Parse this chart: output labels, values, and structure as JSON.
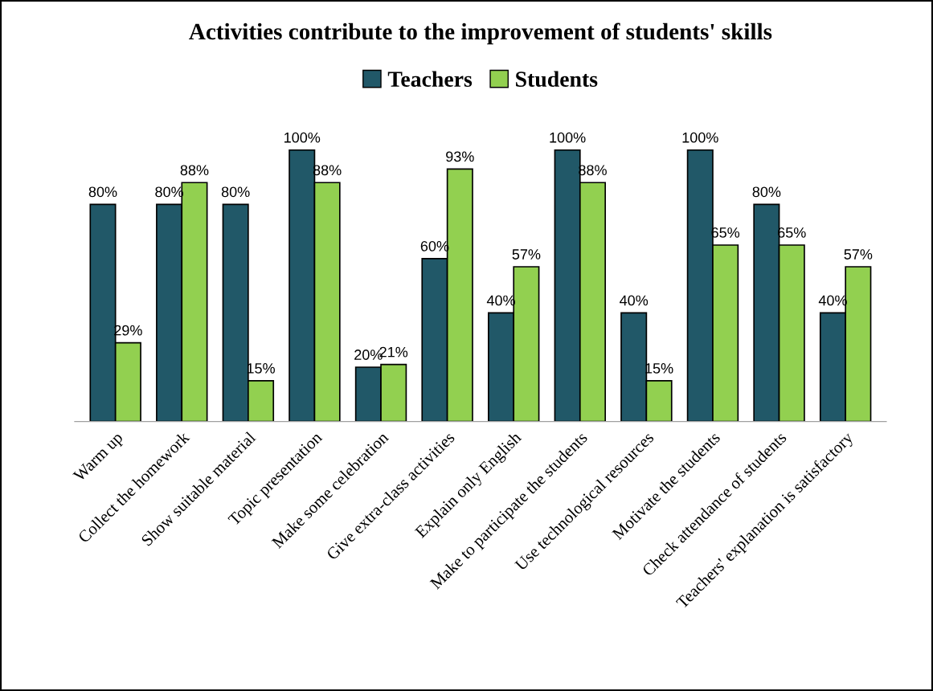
{
  "chart_data": {
    "type": "bar",
    "title": "Activities contribute to the improvement of students' skills",
    "categories": [
      "Warm up",
      "Collect the homework",
      "Show suitable material",
      "Topic presentation",
      "Make some celebration",
      "Give extra-class activities",
      "Explain only English",
      "Make to participate the students",
      "Use technological resources",
      "Motivate the students",
      "Check attendance of students",
      "Teachers' explanation is satisfactory"
    ],
    "series": [
      {
        "name": "Teachers",
        "color": "#215868",
        "values": [
          80,
          80,
          80,
          100,
          20,
          60,
          40,
          100,
          40,
          100,
          80,
          40
        ],
        "value_labels": [
          "80%",
          "80%",
          "80%",
          "100%",
          "20%",
          "60%",
          "40%",
          "100%",
          "40%",
          "100%",
          "80%",
          "40%"
        ]
      },
      {
        "name": "Students",
        "color": "#92d050",
        "values": [
          29,
          88,
          15,
          88,
          21,
          93,
          57,
          88,
          15,
          65,
          65,
          57
        ],
        "value_labels": [
          "29%",
          "88%",
          "15%",
          "88%",
          "21%",
          "93%",
          "57%",
          "88%",
          "15%",
          "65%",
          "65%",
          "57%"
        ]
      }
    ],
    "legend": "top",
    "grid": false
  }
}
